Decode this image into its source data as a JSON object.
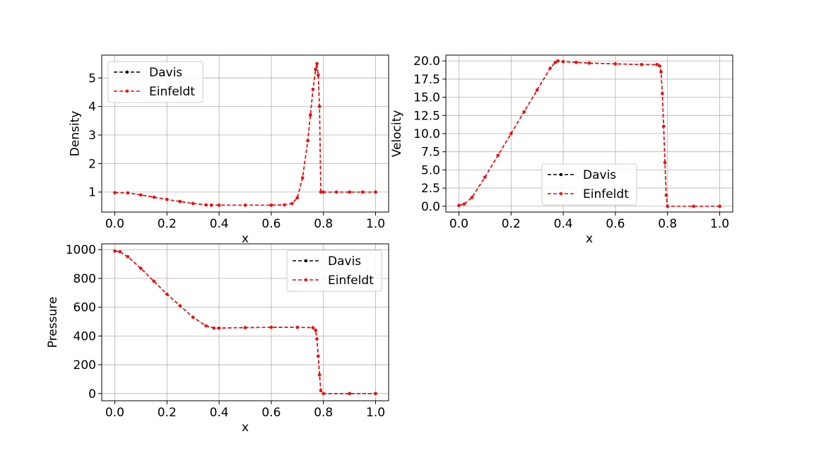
{
  "chart_data": [
    {
      "type": "line",
      "xlabel": "x",
      "ylabel": "Density",
      "xlim": [
        -0.05,
        1.05
      ],
      "ylim": [
        0.3,
        5.8
      ],
      "xticks": [
        0.0,
        0.2,
        0.4,
        0.6,
        0.8,
        1.0
      ],
      "xtick_labels": [
        "0.0",
        "0.2",
        "0.4",
        "0.6",
        "0.8",
        "1.0"
      ],
      "yticks": [
        1,
        2,
        3,
        4,
        5
      ],
      "ytick_labels": [
        "1",
        "2",
        "3",
        "4",
        "5"
      ],
      "grid": true,
      "legend_position": "upper-left",
      "x": [
        0.0,
        0.05,
        0.1,
        0.15,
        0.2,
        0.25,
        0.3,
        0.35,
        0.37,
        0.4,
        0.5,
        0.6,
        0.65,
        0.68,
        0.7,
        0.72,
        0.74,
        0.75,
        0.76,
        0.77,
        0.775,
        0.78,
        0.785,
        0.79,
        0.8,
        0.85,
        0.9,
        0.95,
        1.0
      ],
      "series": [
        {
          "name": "Davis",
          "values": [
            0.98,
            0.97,
            0.9,
            0.82,
            0.74,
            0.67,
            0.6,
            0.55,
            0.54,
            0.54,
            0.54,
            0.54,
            0.55,
            0.6,
            0.8,
            1.5,
            2.8,
            3.7,
            4.6,
            5.3,
            5.5,
            5.1,
            4.0,
            1.0,
            1.0,
            1.0,
            1.0,
            1.0,
            1.0
          ]
        },
        {
          "name": "Einfeldt",
          "values": [
            0.98,
            0.97,
            0.9,
            0.82,
            0.74,
            0.67,
            0.6,
            0.55,
            0.54,
            0.54,
            0.54,
            0.54,
            0.55,
            0.6,
            0.8,
            1.5,
            2.8,
            3.7,
            4.6,
            5.3,
            5.5,
            5.1,
            4.0,
            1.0,
            1.0,
            1.0,
            1.0,
            1.0,
            1.0
          ]
        }
      ]
    },
    {
      "type": "line",
      "xlabel": "x",
      "ylabel": "Velocity",
      "xlim": [
        -0.05,
        1.05
      ],
      "ylim": [
        -0.8,
        20.8
      ],
      "xticks": [
        0.0,
        0.2,
        0.4,
        0.6,
        0.8,
        1.0
      ],
      "xtick_labels": [
        "0.0",
        "0.2",
        "0.4",
        "0.6",
        "0.8",
        "1.0"
      ],
      "yticks": [
        0.0,
        2.5,
        5.0,
        7.5,
        10.0,
        12.5,
        15.0,
        17.5,
        20.0
      ],
      "ytick_labels": [
        "0.0",
        "2.5",
        "5.0",
        "7.5",
        "10.0",
        "12.5",
        "15.0",
        "17.5",
        "20.0"
      ],
      "grid": true,
      "legend_position": "lower-center",
      "x": [
        0.0,
        0.02,
        0.05,
        0.1,
        0.15,
        0.2,
        0.25,
        0.3,
        0.35,
        0.37,
        0.38,
        0.4,
        0.45,
        0.5,
        0.6,
        0.7,
        0.76,
        0.77,
        0.775,
        0.78,
        0.785,
        0.79,
        0.795,
        0.8,
        0.9,
        1.0
      ],
      "series": [
        {
          "name": "Davis",
          "values": [
            0.1,
            0.3,
            1.2,
            4.0,
            7.0,
            10.0,
            13.0,
            16.0,
            19.0,
            19.8,
            20.0,
            19.9,
            19.8,
            19.7,
            19.6,
            19.5,
            19.5,
            19.3,
            18.5,
            15.5,
            11.0,
            6.0,
            1.5,
            0.0,
            0.0,
            0.0
          ]
        },
        {
          "name": "Einfeldt",
          "values": [
            0.1,
            0.3,
            1.2,
            4.0,
            7.0,
            10.0,
            13.0,
            16.0,
            19.0,
            19.8,
            20.0,
            19.9,
            19.8,
            19.7,
            19.6,
            19.5,
            19.5,
            19.3,
            18.5,
            15.5,
            11.0,
            6.0,
            1.5,
            0.0,
            0.0,
            0.0
          ]
        }
      ]
    },
    {
      "type": "line",
      "xlabel": "x",
      "ylabel": "Pressure",
      "xlim": [
        -0.05,
        1.05
      ],
      "ylim": [
        -50,
        1040
      ],
      "xticks": [
        0.0,
        0.2,
        0.4,
        0.6,
        0.8,
        1.0
      ],
      "xtick_labels": [
        "0.0",
        "0.2",
        "0.4",
        "0.6",
        "0.8",
        "1.0"
      ],
      "yticks": [
        0,
        200,
        400,
        600,
        800,
        1000
      ],
      "ytick_labels": [
        "0",
        "200",
        "400",
        "600",
        "800",
        "1000"
      ],
      "grid": true,
      "legend_position": "upper-right",
      "x": [
        0.0,
        0.02,
        0.05,
        0.1,
        0.15,
        0.2,
        0.25,
        0.3,
        0.35,
        0.38,
        0.4,
        0.5,
        0.6,
        0.7,
        0.76,
        0.77,
        0.775,
        0.78,
        0.785,
        0.79,
        0.8,
        0.9,
        1.0
      ],
      "series": [
        {
          "name": "Davis",
          "values": [
            990,
            985,
            950,
            870,
            780,
            690,
            610,
            530,
            470,
            455,
            455,
            458,
            460,
            460,
            458,
            440,
            380,
            260,
            130,
            20,
            0,
            0,
            0
          ]
        },
        {
          "name": "Einfeldt",
          "values": [
            990,
            985,
            950,
            870,
            780,
            690,
            610,
            530,
            470,
            455,
            455,
            458,
            460,
            460,
            458,
            440,
            380,
            260,
            130,
            20,
            0,
            0,
            0
          ]
        }
      ]
    }
  ],
  "colors": {
    "Davis": "#000000",
    "Einfeldt": "#ff0000",
    "grid": "#b0b0b0",
    "axes": "#000000",
    "legend_border": "#cccccc"
  }
}
